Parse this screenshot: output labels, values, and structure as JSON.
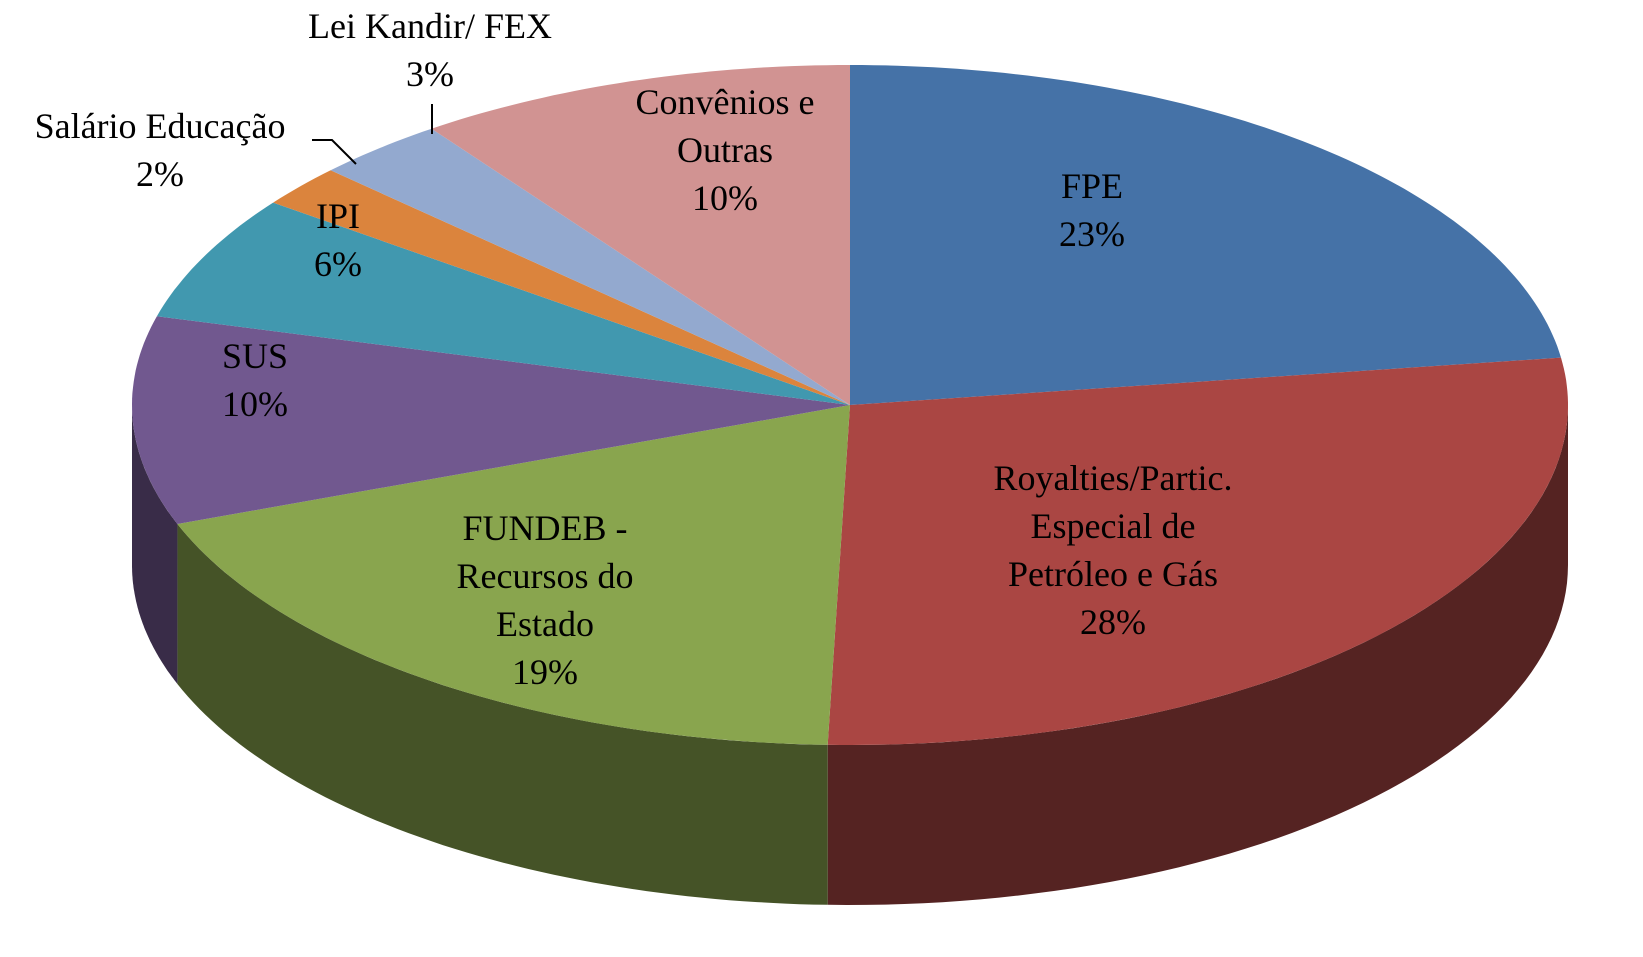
{
  "chart_data": {
    "type": "pie3d",
    "categories": [
      "FPE",
      "Royalties/Partic.\nEspecial de\nPetróleo e Gás",
      "FUNDEB -\nRecursos do\nEstado",
      "SUS",
      "IPI",
      "Salário Educação",
      "Lei Kandir/ FEX",
      "Convênios e\nOutras"
    ],
    "values": [
      23,
      28,
      19,
      10,
      6,
      2,
      3,
      10
    ],
    "value_labels": [
      "23%",
      "28%",
      "19%",
      "10%",
      "6%",
      "2%",
      "3%",
      "10%"
    ],
    "colors": [
      "#4572a7",
      "#aa4643",
      "#89a54e",
      "#71588f",
      "#4198af",
      "#db843d",
      "#93a9cf",
      "#d19392"
    ]
  }
}
